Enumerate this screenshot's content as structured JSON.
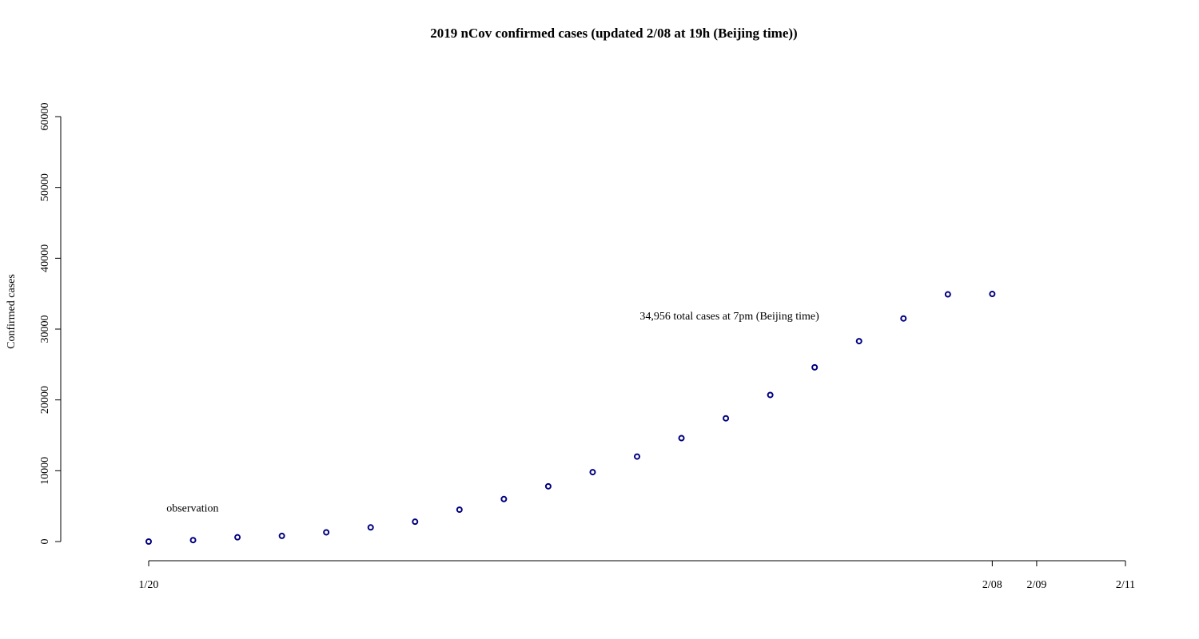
{
  "chart_data": {
    "type": "scatter",
    "title": "2019 nCov confirmed cases (updated 2/08 at 19h (Beijing time))",
    "xlabel": "",
    "ylabel": "Confirmed cases",
    "x_tick_labels": [
      {
        "x": 0,
        "label": "1/20"
      },
      {
        "x": 19,
        "label": "2/08"
      },
      {
        "x": 20,
        "label": "2/09"
      },
      {
        "x": 22,
        "label": "2/11"
      }
    ],
    "x_origin_date": "1/20",
    "xlim": [
      0,
      22
    ],
    "ylim": [
      0,
      60000
    ],
    "y_ticks": [
      0,
      10000,
      20000,
      30000,
      40000,
      50000,
      60000
    ],
    "grid": false,
    "point_color": "#00007f",
    "series": [
      {
        "x": [
          0,
          1,
          2,
          3,
          4,
          5,
          6,
          7,
          8,
          9,
          10,
          11,
          12,
          13,
          14,
          15,
          16,
          17,
          18,
          19
        ],
        "values": [
          0,
          200,
          600,
          800,
          1300,
          2000,
          2800,
          4500,
          6000,
          7800,
          9800,
          12000,
          14600,
          17400,
          20700,
          24600,
          28300,
          31500,
          34900,
          34956
        ]
      }
    ],
    "annotations": [
      {
        "text": "observation",
        "x": 0.4,
        "y": 4800,
        "anchor": "start"
      },
      {
        "text": "34,956 total cases at 7pm (Beijing time)",
        "x": 15.1,
        "y": 31900,
        "anchor": "end"
      }
    ]
  }
}
